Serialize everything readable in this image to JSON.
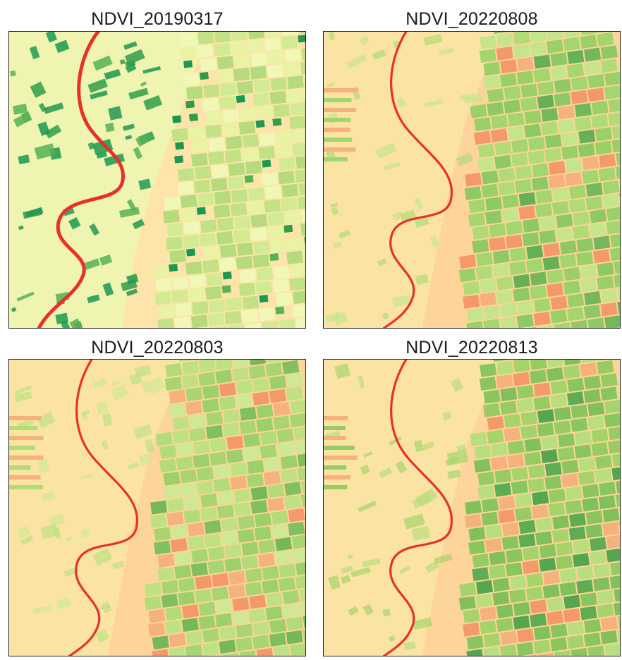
{
  "panels": [
    {
      "title": "NDVI_20190317",
      "style": "early",
      "field_colors": [
        "#e8f3a3",
        "#d2ea92",
        "#c2e285",
        "#f1f7b6",
        "#b5db7c"
      ],
      "dark_colors": [
        "#1a9850",
        "#239653",
        "#2f9c49",
        "#56b254"
      ],
      "bare_colors": [
        "#fdda9a",
        "#fee4a8"
      ],
      "river_color": "#e6312c"
    },
    {
      "title": "NDVI_20220808",
      "style": "summer",
      "field_colors": [
        "#a5d56d",
        "#9bd066",
        "#b2db76",
        "#8fc963",
        "#c6e58a"
      ],
      "dark_colors": [
        "#73b85a",
        "#66b155"
      ],
      "bare_colors": [
        "#f6b27c",
        "#f49a6a",
        "#fdd49a"
      ],
      "river_color": "#e6312c"
    },
    {
      "title": "NDVI_20220803",
      "style": "summer",
      "field_colors": [
        "#b3dc78",
        "#a8d56f",
        "#bfe182",
        "#9ed069",
        "#cfe893"
      ],
      "dark_colors": [
        "#80c05e",
        "#74b858"
      ],
      "bare_colors": [
        "#f6b27c",
        "#f49a6a",
        "#fdd49a"
      ],
      "river_color": "#e6312c"
    },
    {
      "title": "NDVI_20220813",
      "style": "summer",
      "field_colors": [
        "#98cc63",
        "#8bc55e",
        "#a6d46b",
        "#82c05b",
        "#b9de7d"
      ],
      "dark_colors": [
        "#5fad52",
        "#54a74e"
      ],
      "bare_colors": [
        "#f6b27c",
        "#f49a6a",
        "#fdd49a"
      ],
      "river_color": "#e6312c"
    }
  ]
}
